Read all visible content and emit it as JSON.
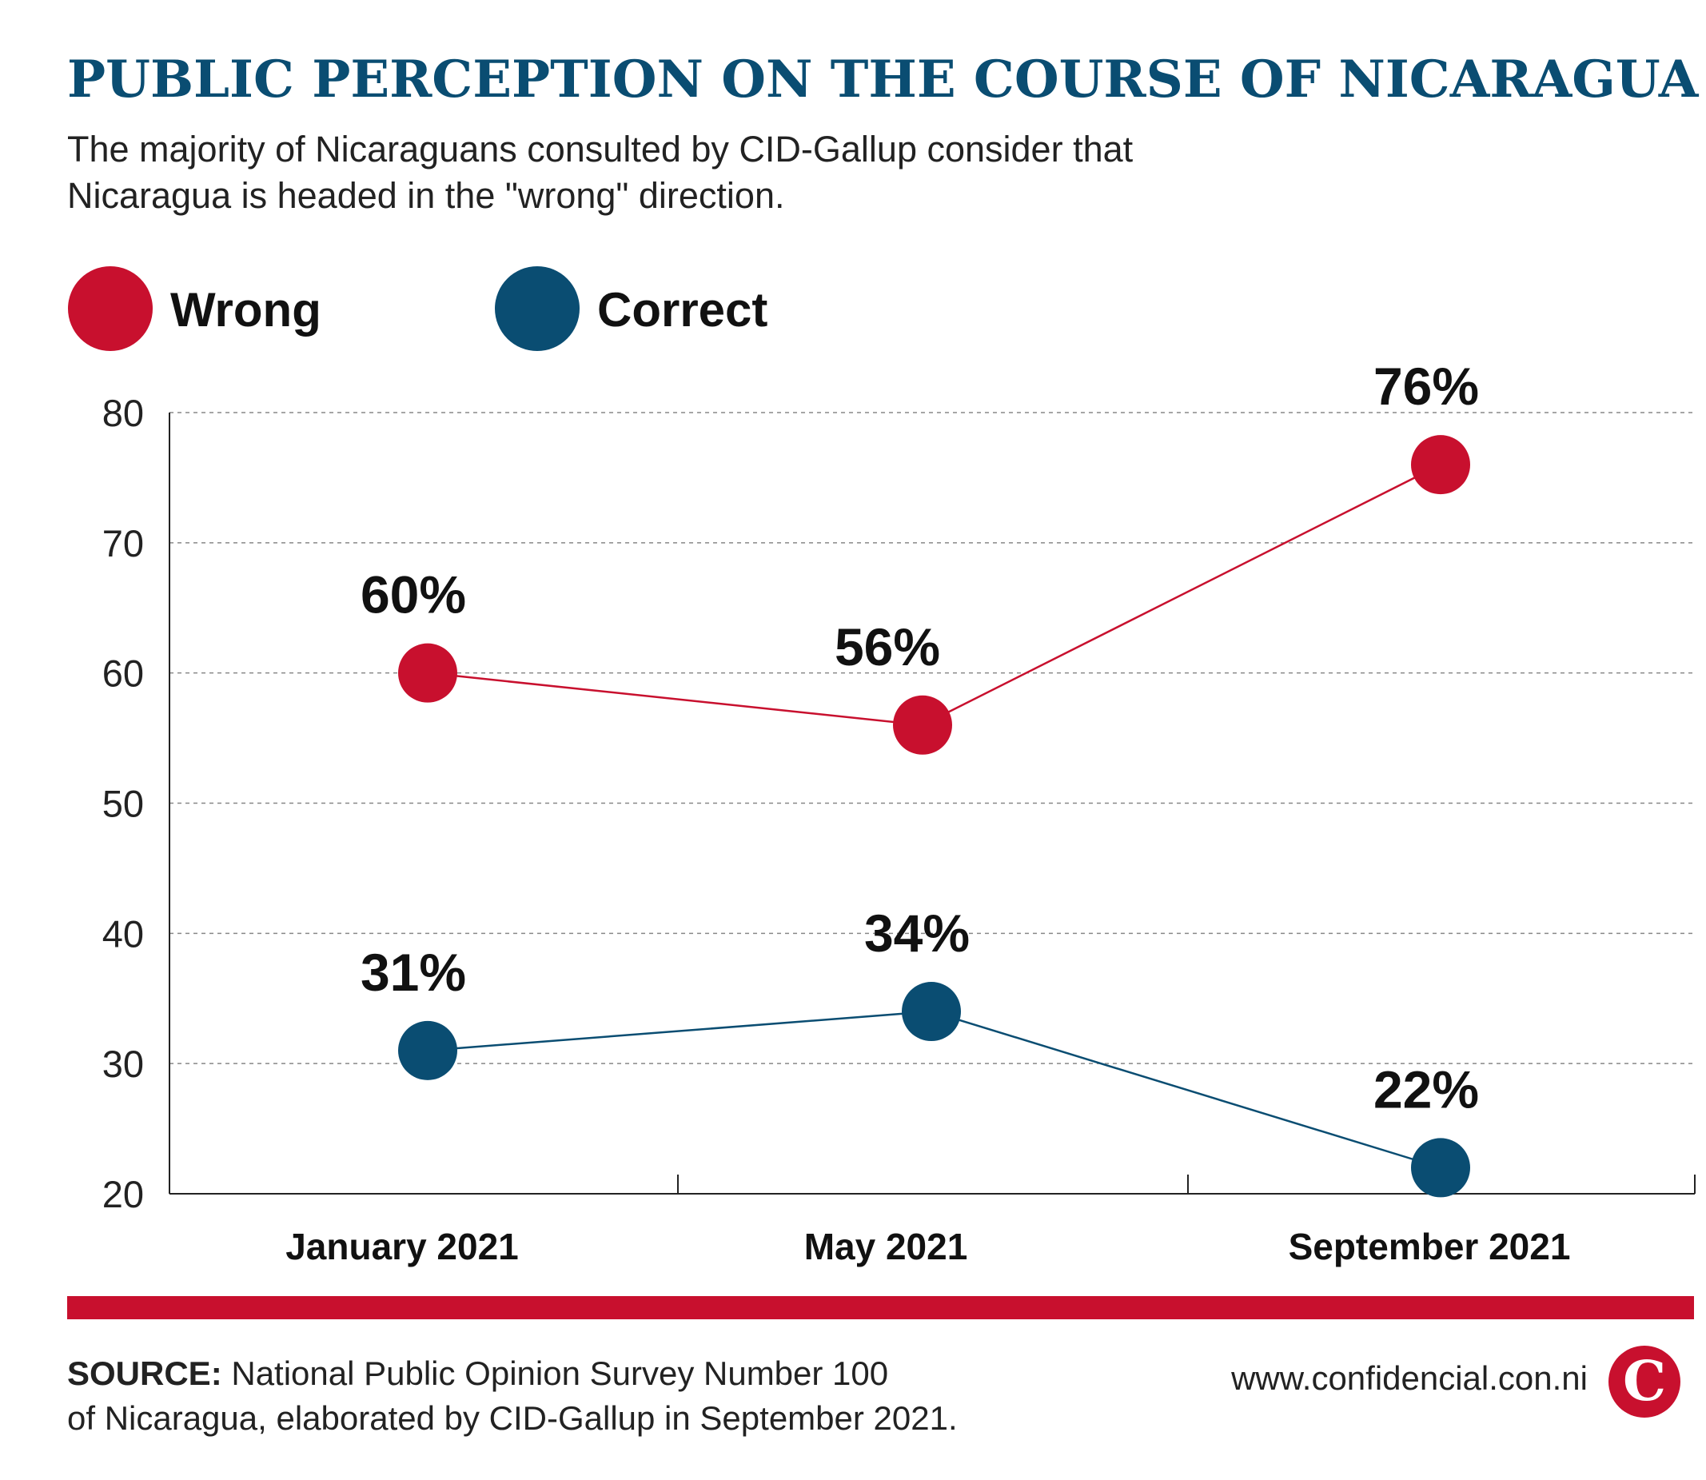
{
  "header": {
    "title": "PUBLIC PERCEPTION ON THE COURSE OF NICARAGUA",
    "subtitle_line1": "The majority of Nicaraguans consulted by CID-Gallup consider that",
    "subtitle_line2": "Nicaragua is headed in the \"wrong\" direction."
  },
  "chart_data": {
    "type": "line",
    "categories": [
      "January 2021",
      "May 2021",
      "September 2021"
    ],
    "series": [
      {
        "name": "Wrong",
        "values": [
          60,
          56,
          76
        ],
        "labels": [
          "60%",
          "56%",
          "76%"
        ],
        "color": "#c8102e"
      },
      {
        "name": "Correct",
        "values": [
          31,
          34,
          22
        ],
        "labels": [
          "31%",
          "34%",
          "22%"
        ],
        "color": "#0a4d72"
      }
    ],
    "ylim": [
      20,
      80
    ],
    "yticks": [
      20,
      30,
      40,
      50,
      60,
      70,
      80
    ],
    "grid": true,
    "legend_position": "top-left"
  },
  "footer": {
    "source_label": "SOURCE:",
    "source_line1": "National Public Opinion Survey Number 100",
    "source_line2": "of Nicaragua, elaborated by CID-Gallup in September 2021.",
    "website": "www.confidencial.con.ni",
    "logo_letter": "C"
  },
  "colors": {
    "accent_red": "#c8102e",
    "brand_blue": "#0a4d72"
  }
}
